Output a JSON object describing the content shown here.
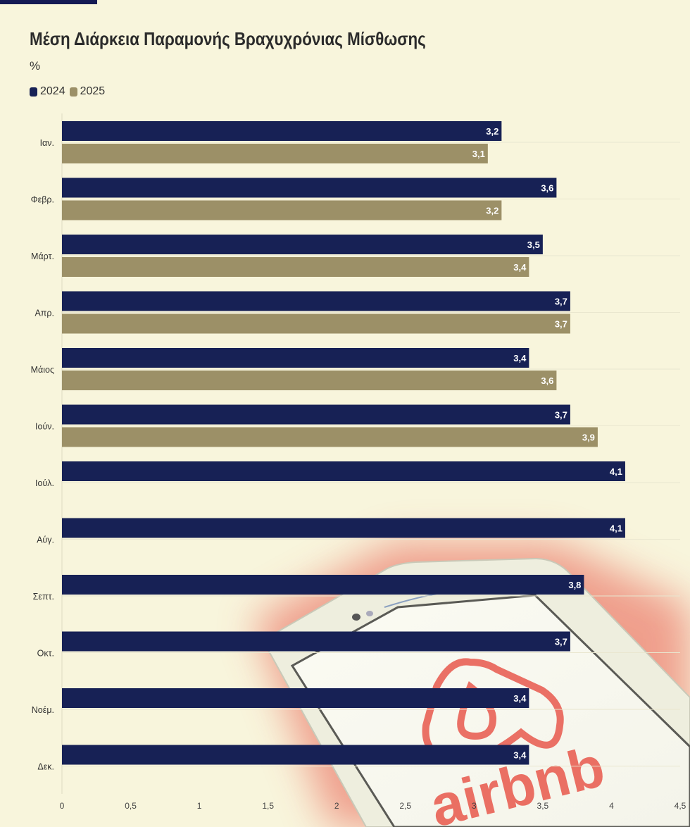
{
  "chart_data": {
    "type": "bar",
    "orientation": "horizontal",
    "title": "Μέση Διάρκεια Παραμονής Βραχυχρόνιας Μίσθωσης",
    "subtitle": "%",
    "categories": [
      "Ιαν.",
      "Φεβρ.",
      "Μάρτ.",
      "Απρ.",
      "Μάιος",
      "Ιούν.",
      "Ιούλ.",
      "Αύγ.",
      "Σεπτ.",
      "Οκτ.",
      "Νοέμ.",
      "Δεκ."
    ],
    "series": [
      {
        "name": "2024",
        "color": "#172155",
        "values": [
          3.2,
          3.6,
          3.5,
          3.7,
          3.4,
          3.7,
          4.1,
          4.1,
          3.8,
          3.7,
          3.4,
          3.4
        ]
      },
      {
        "name": "2025",
        "color": "#9c9067",
        "values": [
          3.1,
          3.2,
          3.4,
          3.7,
          3.6,
          3.9,
          null,
          null,
          null,
          null,
          null,
          null
        ]
      }
    ],
    "xlim": [
      0,
      4.5
    ],
    "xticks": [
      "0",
      "0,5",
      "1",
      "1,5",
      "2",
      "2,5",
      "3",
      "3,5",
      "4",
      "4,5"
    ],
    "grid": true,
    "legend_position": "top-left",
    "data_labels": true,
    "decimal_separator": ","
  },
  "background_image": {
    "logo_text": "airbnb",
    "accent_color": "#e8584c"
  }
}
